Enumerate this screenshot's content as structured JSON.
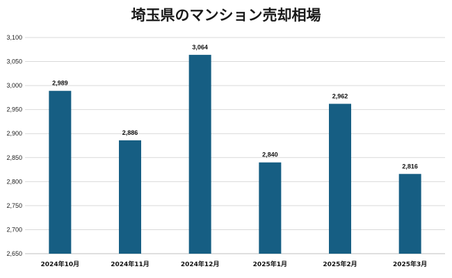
{
  "colors": {
    "bar": "#165e83"
  },
  "chart_data": {
    "type": "bar",
    "title": "埼玉県のマンション売却相場",
    "categories": [
      "2024年10月",
      "2024年11月",
      "2024年12月",
      "2025年1月",
      "2025年2月",
      "2025年3月"
    ],
    "values": [
      2989,
      2886,
      3064,
      2840,
      2962,
      2816
    ],
    "data_labels": [
      "2,989",
      "2,886",
      "3,064",
      "2,840",
      "2,962",
      "2,816"
    ],
    "ylim": [
      2650,
      3100
    ],
    "yticks": [
      "2,650",
      "2,700",
      "2,750",
      "2,800",
      "2,850",
      "2,900",
      "2,950",
      "3,000",
      "3,050",
      "3,100"
    ],
    "grid": true,
    "xlabel": "",
    "ylabel": ""
  }
}
